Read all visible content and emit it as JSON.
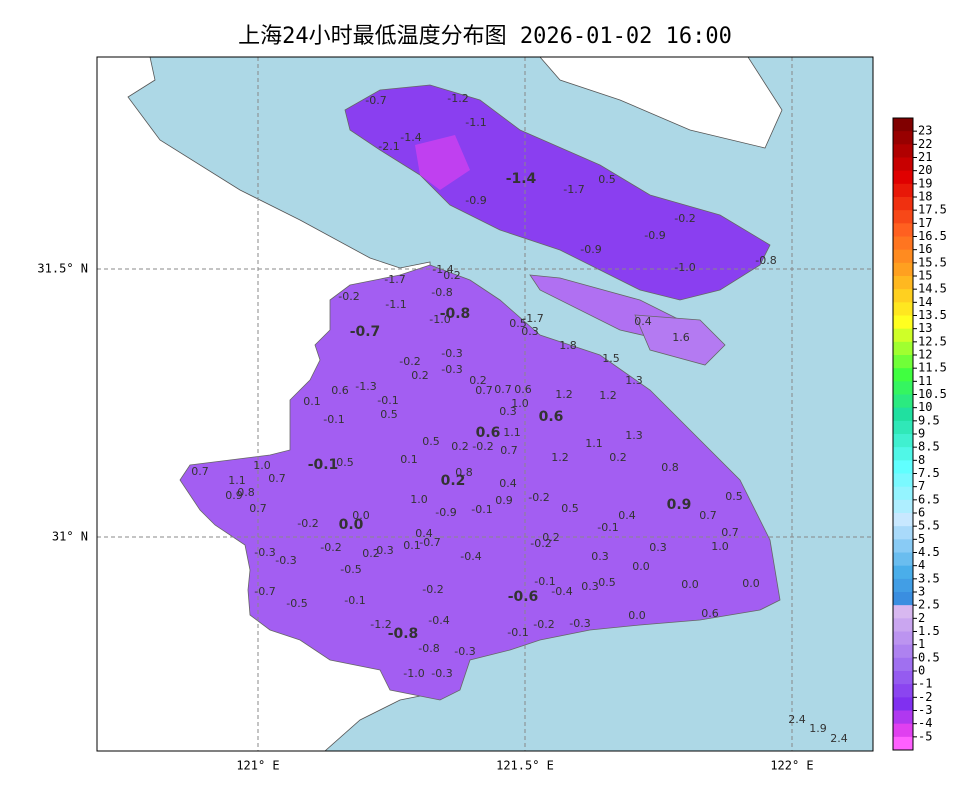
{
  "title": "上海24小时最低温度分布图 2026-01-02 16:00",
  "lat_labels": [
    "31.5° N",
    "31° N"
  ],
  "lon_labels": [
    "121° E",
    "121.5° E",
    "122° E"
  ],
  "colorbar_labels": [
    "23",
    "22",
    "21",
    "20",
    "19",
    "18",
    "17.5",
    "17",
    "16.5",
    "16",
    "15.5",
    "15",
    "14.5",
    "14",
    "13.5",
    "13",
    "12.5",
    "12",
    "11.5",
    "11",
    "10.5",
    "10",
    "9.5",
    "9",
    "8.5",
    "8",
    "7.5",
    "7",
    "6.5",
    "6",
    "5.5",
    "5",
    "4.5",
    "4",
    "3.5",
    "3",
    "2.5",
    "2",
    "1.5",
    "1",
    "0.5",
    "0",
    "-1",
    "-2",
    "-3",
    "-4",
    "-5"
  ],
  "stations": [
    "-0.7",
    "-1.2",
    "-1.1",
    "-1.4",
    "-2.1",
    "-1.4",
    "-1.7",
    "0.5",
    "-0.9",
    "-0.2",
    "-0.9",
    "-0.9",
    "-1.0",
    "-0.8",
    "-1.4",
    "0.2",
    "-1.7",
    "-0.8",
    "-0.2",
    "-1.1",
    "-1.0",
    "-0.8",
    "-0.7",
    "0.5",
    "-1.7",
    "0.3",
    "0.4",
    "1.6",
    "1.8",
    "-0.3",
    "-0.2",
    "0.2",
    "-0.3",
    "1.5",
    "0.2",
    "1.3",
    "0.6",
    "-1.3",
    "0.7",
    "0.7",
    "0.6",
    "-0.1",
    "1.2",
    "1.2",
    "0.1",
    "0.5",
    "1.0",
    "0.3",
    "0.6",
    "-0.1",
    "0.6",
    "1.1",
    "0.5",
    "0.2",
    "-0.2",
    "0.7",
    "1.3",
    "1.1",
    "1.2",
    "0.2",
    "-0.1",
    "0.5",
    "0.1",
    "1.0",
    "0.7",
    "0.8",
    "0.7",
    "0.8",
    "1.1",
    "0.2",
    "0.4",
    "0.9",
    "0.8",
    "1.0",
    "0.9",
    "-0.2",
    "0.5",
    "0.9",
    "0.7",
    "-0.9",
    "-0.1",
    "0.5",
    "0.4",
    "0.7",
    "0.0",
    "0.0",
    "-0.2",
    "-0.1",
    "0.7",
    "0.4",
    "-0.7",
    "0.1",
    "0.3",
    "1.0",
    "-0.2",
    "0.2",
    "-0.2",
    "0.2",
    "0.3",
    "-0.3",
    "-0.3",
    "-0.4",
    "0.3",
    "0.0",
    "-0.5",
    "-0.1",
    "-0.4",
    "0.3",
    "0.5",
    "0.0",
    "0.0",
    "-0.2",
    "-0.7",
    "-0.6",
    "-0.5",
    "-0.1",
    "0.0",
    "0.6",
    "-0.4",
    "-0.2",
    "-0.3",
    "-1.2",
    "-0.8",
    "-0.1",
    "-0.8",
    "-0.3",
    "-1.0",
    "-0.3",
    "2.4",
    "1.9",
    "2.4"
  ]
}
